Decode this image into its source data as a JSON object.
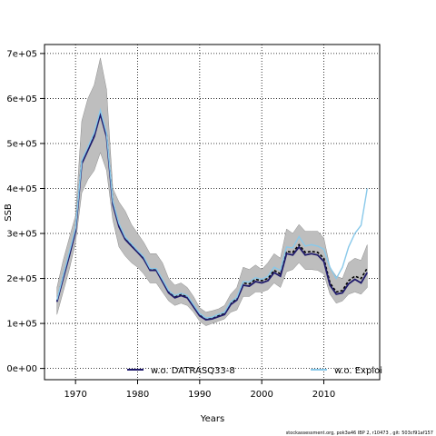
{
  "chart_data": {
    "type": "line",
    "title": "",
    "xlabel": "Years",
    "ylabel": "SSB",
    "xlim": [
      1965,
      2019
    ],
    "ylim": [
      -25000,
      720000
    ],
    "x_ticks": [
      1970,
      1980,
      1990,
      2000,
      2010
    ],
    "y_ticks": [
      0,
      100000,
      200000,
      300000,
      400000,
      500000,
      600000,
      700000
    ],
    "y_tick_labels": [
      "0e+00",
      "1e+05",
      "2e+05",
      "3e+05",
      "4e+05",
      "5e+05",
      "6e+05",
      "7e+05"
    ],
    "grid": true,
    "legend_position": "bottom",
    "x": [
      1967,
      1968,
      1969,
      1970,
      1971,
      1972,
      1973,
      1974,
      1975,
      1976,
      1977,
      1978,
      1979,
      1980,
      1981,
      1982,
      1983,
      1984,
      1985,
      1986,
      1987,
      1988,
      1989,
      1990,
      1991,
      1992,
      1993,
      1994,
      1995,
      1996,
      1997,
      1998,
      1999,
      2000,
      2001,
      2002,
      2003,
      2004,
      2005,
      2006,
      2007,
      2008,
      2009,
      2010,
      2011,
      2012,
      2013,
      2014,
      2015,
      2016,
      2017
    ],
    "band": {
      "color": "#bebebe",
      "lower": [
        120000,
        170000,
        220000,
        280000,
        390000,
        420000,
        440000,
        480000,
        440000,
        330000,
        270000,
        250000,
        235000,
        225000,
        210000,
        190000,
        190000,
        170000,
        150000,
        140000,
        145000,
        140000,
        125000,
        105000,
        95000,
        100000,
        105000,
        110000,
        125000,
        130000,
        160000,
        160000,
        170000,
        170000,
        175000,
        190000,
        180000,
        215000,
        220000,
        235000,
        220000,
        220000,
        218000,
        210000,
        165000,
        145000,
        150000,
        165000,
        170000,
        165000,
        180000
      ],
      "upper": [
        180000,
        240000,
        290000,
        340000,
        550000,
        600000,
        630000,
        690000,
        620000,
        400000,
        370000,
        350000,
        320000,
        300000,
        280000,
        255000,
        255000,
        235000,
        200000,
        185000,
        190000,
        180000,
        160000,
        135000,
        125000,
        128000,
        132000,
        140000,
        165000,
        180000,
        225000,
        220000,
        230000,
        220000,
        235000,
        255000,
        245000,
        310000,
        300000,
        320000,
        305000,
        305000,
        305000,
        290000,
        225000,
        205000,
        200000,
        235000,
        245000,
        240000,
        275000
      ]
    },
    "series": [
      {
        "name": "",
        "color": "#000000",
        "dash": "3,2",
        "values": [
          150000,
          205000,
          255000,
          310000,
          460000,
          490000,
          520000,
          570000,
          520000,
          370000,
          320000,
          290000,
          275000,
          260000,
          245000,
          220000,
          220000,
          195000,
          170000,
          160000,
          165000,
          160000,
          140000,
          120000,
          110000,
          112000,
          118000,
          122000,
          145000,
          155000,
          190000,
          188000,
          198000,
          195000,
          200000,
          218000,
          210000,
          260000,
          258000,
          275000,
          258000,
          260000,
          258000,
          245000,
          190000,
          170000,
          173000,
          195000,
          205000,
          200000,
          223000
        ]
      },
      {
        "name": "w.o. DATRASQ33-8",
        "color": "#1f1a6b",
        "dash": "",
        "values": [
          148000,
          200000,
          250000,
          305000,
          455000,
          485000,
          515000,
          565000,
          515000,
          365000,
          315000,
          287000,
          272000,
          258000,
          243000,
          218000,
          218000,
          193000,
          168000,
          157000,
          162000,
          157000,
          137000,
          117000,
          108000,
          110000,
          115000,
          120000,
          142000,
          152000,
          185000,
          183000,
          193000,
          190000,
          195000,
          213000,
          205000,
          255000,
          252000,
          270000,
          252000,
          255000,
          252000,
          238000,
          185000,
          165000,
          168000,
          188000,
          198000,
          190000,
          213000
        ]
      },
      {
        "name": "w.o. Exploi",
        "color": "#89c9ea",
        "dash": "",
        "values": [
          152000,
          206000,
          258000,
          312000,
          462000,
          492000,
          524000,
          574000,
          523000,
          372000,
          322000,
          292000,
          277000,
          262000,
          248000,
          222000,
          222000,
          198000,
          173000,
          162000,
          167000,
          162000,
          142000,
          122000,
          112000,
          114000,
          120000,
          125000,
          148000,
          158000,
          193000,
          192000,
          202000,
          198000,
          205000,
          225000,
          218000,
          270000,
          268000,
          293000,
          272000,
          275000,
          272000,
          265000,
          225000,
          200000,
          225000,
          270000,
          300000,
          318000,
          400000
        ]
      }
    ],
    "legend": [
      {
        "label": "w.o. DATRASQ33-8",
        "color": "#1f1a6b"
      },
      {
        "label": "w.o. Exploi",
        "color": "#89c9ea"
      }
    ]
  },
  "footnote": "stockassessment.org, pok3a46 IBP 2, r10473 , git: 503cf91af157"
}
